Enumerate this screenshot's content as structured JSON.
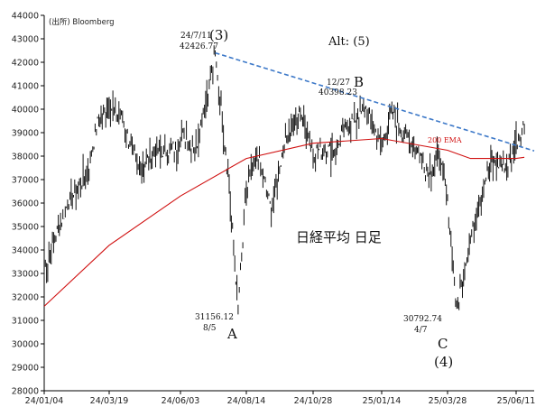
{
  "chart_data": {
    "type": "line",
    "title": "日経平均 日足",
    "source": "(出所) Bloomberg",
    "ylim": [
      28000,
      44000
    ],
    "yticks": [
      28000,
      29000,
      30000,
      31000,
      32000,
      33000,
      34000,
      35000,
      36000,
      37000,
      38000,
      39000,
      40000,
      41000,
      42000,
      43000,
      44000
    ],
    "xticks": [
      "24/01/04",
      "24/03/19",
      "24/06/03",
      "24/08/14",
      "24/10/28",
      "25/01/14",
      "25/03/28",
      "25/06/11"
    ],
    "grid": false,
    "series": [
      {
        "name": "",
        "style": "daily bars",
        "color": "#000000",
        "x": [
          "24/01/04",
          "24/01/31",
          "24/02/22",
          "24/03/07",
          "24/03/19",
          "24/04/01",
          "24/04/19",
          "24/05/10",
          "24/05/30",
          "24/06/03",
          "24/06/20",
          "24/07/11",
          "24/07/25",
          "24/08/05",
          "24/08/14",
          "24/08/26",
          "24/09/11",
          "24/09/27",
          "24/10/15",
          "24/10/28",
          "24/11/20",
          "24/12/06",
          "24/12/27",
          "25/01/14",
          "25/01/24",
          "25/02/07",
          "25/02/20",
          "25/03/06",
          "25/03/19",
          "25/03/28",
          "25/04/07",
          "25/04/22",
          "25/05/13",
          "25/06/02",
          "25/06/11",
          "25/06/20"
        ],
        "values": [
          33100,
          36000,
          37200,
          39600,
          40200,
          39600,
          37500,
          38200,
          38300,
          38900,
          38400,
          42300,
          37300,
          31500,
          36500,
          38100,
          35700,
          38800,
          39800,
          38200,
          38300,
          39300,
          40000,
          38400,
          39900,
          38900,
          38500,
          37300,
          38000,
          36000,
          31500,
          34500,
          37700,
          37600,
          38500,
          39300
        ]
      },
      {
        "name": "200 EMA",
        "color": "#d01010",
        "x": [
          "24/01/04",
          "24/03/19",
          "24/06/03",
          "24/08/14",
          "24/10/28",
          "25/01/14",
          "25/03/28",
          "25/04/22",
          "25/06/11",
          "25/06/20"
        ],
        "values": [
          31600,
          34200,
          36300,
          37900,
          38550,
          38750,
          38250,
          37900,
          37900,
          37950
        ]
      },
      {
        "name": "",
        "style": "dashed trendline",
        "color": "#3c78c8",
        "x": [
          "24/07/11",
          "25/06/20"
        ],
        "values": [
          42400,
          38350
        ]
      }
    ],
    "annotations": [
      {
        "label": "24/7/11",
        "value": "42426.77",
        "wave": "(3)"
      },
      {
        "label": "12/27",
        "value": "40398.23",
        "wave": "B"
      },
      {
        "label": "8/5",
        "value": "31156.12",
        "wave": "A"
      },
      {
        "label": "4/7",
        "value": "30792.74",
        "wave": "C",
        "wave2": "(4)"
      },
      {
        "label": "Alt: (5)"
      }
    ]
  }
}
